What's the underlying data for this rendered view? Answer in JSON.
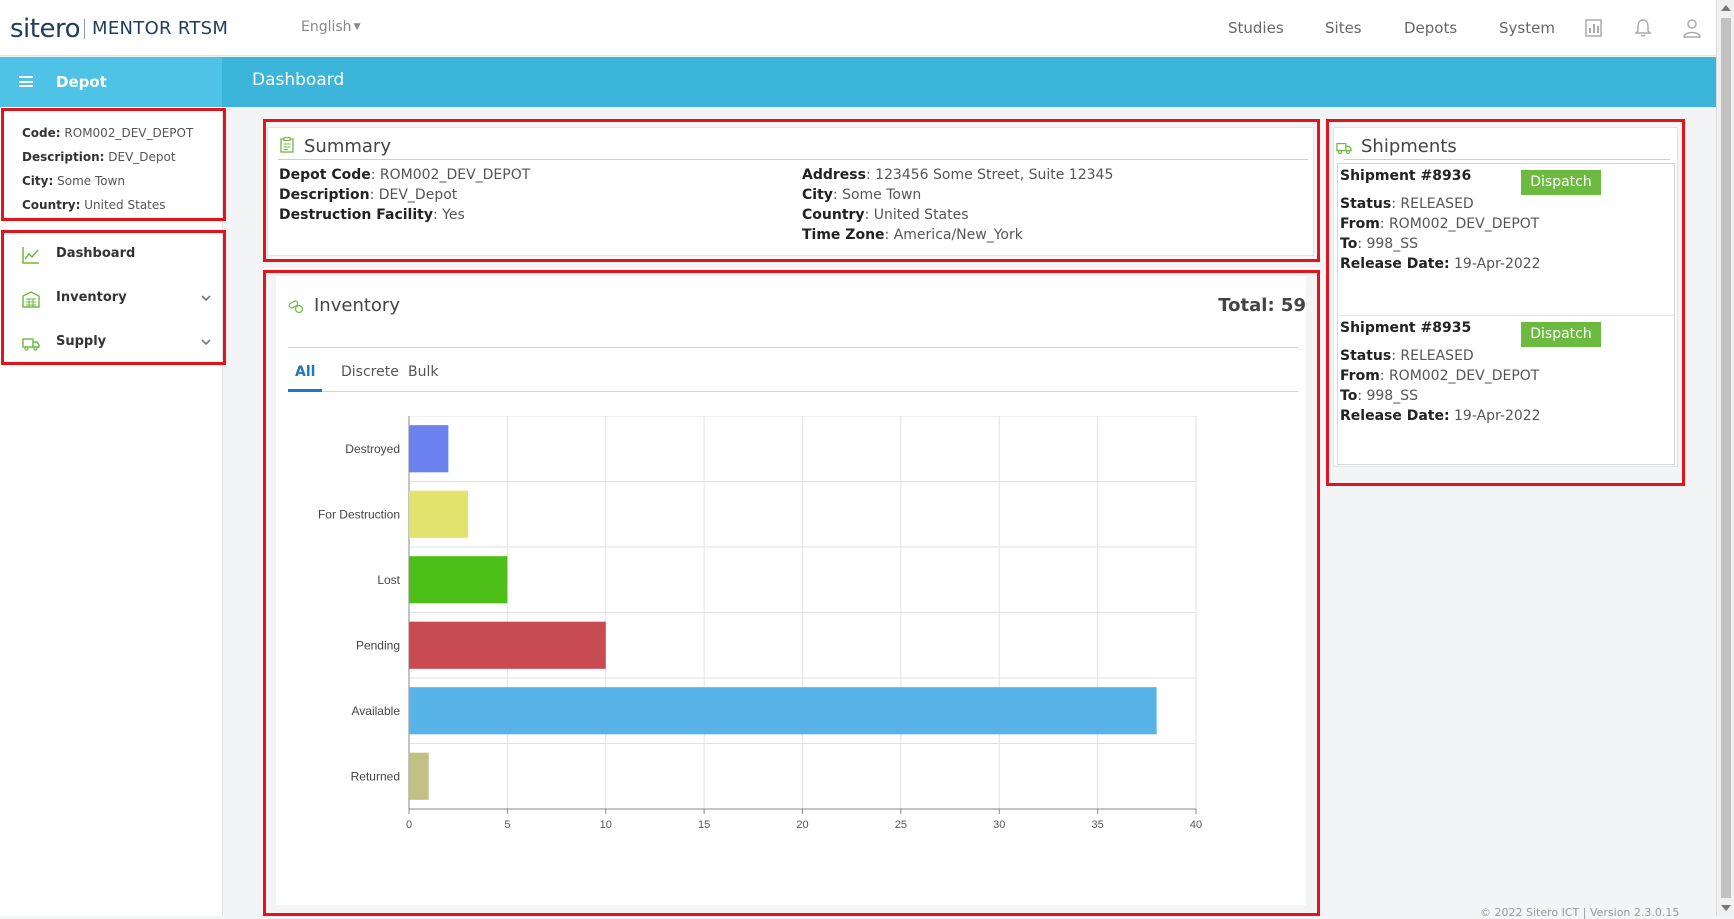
{
  "header": {
    "brand": "sitero",
    "product": "MENTOR RTSM",
    "language": "English",
    "nav": [
      "Studies",
      "Sites",
      "Depots",
      "System"
    ]
  },
  "bluebar": {
    "section_title": "Depot",
    "page_title": "Dashboard"
  },
  "sidebar": {
    "depot_info": [
      {
        "label": "Code:",
        "value": "ROM002_DEV_DEPOT"
      },
      {
        "label": "Description:",
        "value": "DEV_Depot"
      },
      {
        "label": "City:",
        "value": "Some Town"
      },
      {
        "label": "Country:",
        "value": "United States"
      }
    ],
    "menu": [
      {
        "label": "Dashboard",
        "icon": "chart-line-icon"
      },
      {
        "label": "Inventory",
        "icon": "warehouse-icon"
      },
      {
        "label": "Supply",
        "icon": "truck-icon"
      }
    ]
  },
  "summary": {
    "title": "Summary",
    "left": [
      {
        "label": "Depot Code",
        "value": ": ROM002_DEV_DEPOT"
      },
      {
        "label": "Description",
        "value": ": DEV_Depot"
      },
      {
        "label": "Destruction Facility",
        "value": ": Yes"
      }
    ],
    "right": [
      {
        "label": "Address",
        "value": ": 123456 Some Street, Suite 12345"
      },
      {
        "label": "City",
        "value": ": Some Town"
      },
      {
        "label": "Country",
        "value": ": United States"
      },
      {
        "label": "Time Zone",
        "value": ": America/New_York"
      }
    ]
  },
  "inventory": {
    "title": "Inventory",
    "total": "Total: 59",
    "tabs": [
      "All",
      "Discrete",
      "Bulk"
    ],
    "active_tab": "All"
  },
  "chart_data": {
    "type": "bar",
    "orientation": "horizontal",
    "categories": [
      "Destroyed",
      "For Destruction",
      "Lost",
      "Pending",
      "Available",
      "Returned"
    ],
    "values": [
      2,
      3,
      5,
      10,
      38,
      1
    ],
    "colors": [
      "#6b82ee",
      "#e2e36c",
      "#4dbf18",
      "#c84b52",
      "#58b4e8",
      "#c3c085"
    ],
    "xlim": [
      0,
      40
    ],
    "xticks": [
      0,
      5,
      10,
      15,
      20,
      25,
      30,
      35,
      40
    ],
    "grid": true
  },
  "shipments": {
    "title": "Shipments",
    "items": [
      {
        "number": "Shipment #8936",
        "button": "Dispatch",
        "status_label": "Status",
        "status": ": RELEASED",
        "from_label": "From",
        "from": ": ROM002_DEV_DEPOT",
        "to_label": "To",
        "to": ": 998_SS",
        "date_label": "Release Date:",
        "date": " 19-Apr-2022"
      },
      {
        "number": "Shipment #8935",
        "button": "Dispatch",
        "status_label": "Status",
        "status": ": RELEASED",
        "from_label": "From",
        "from": ": ROM002_DEV_DEPOT",
        "to_label": "To",
        "to": ": 998_SS",
        "date_label": "Release Date:",
        "date": " 19-Apr-2022"
      }
    ]
  },
  "footer": "© 2022 Sitero ICT | Version 2.3.0.15"
}
